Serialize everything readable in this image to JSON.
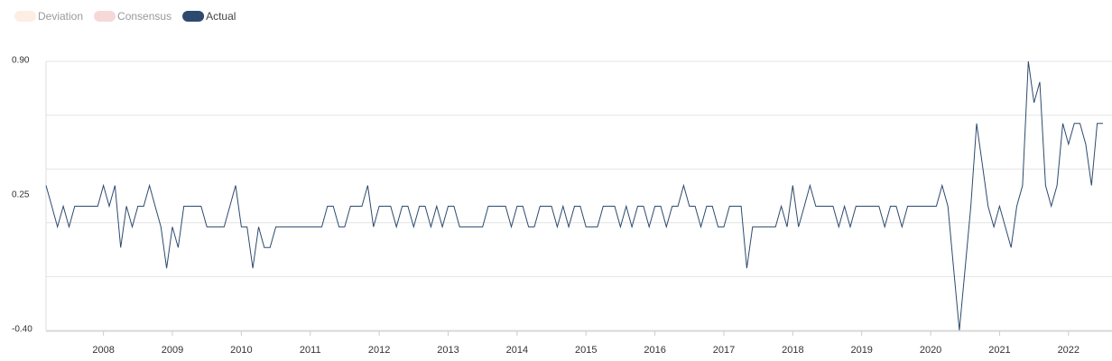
{
  "chart_data": {
    "type": "line",
    "legend": [
      {
        "name": "Deviation",
        "color": "#fdeee3"
      },
      {
        "name": "Consensus",
        "color": "#f6d8d8"
      },
      {
        "name": "Actual",
        "color": "#2d4a6e"
      }
    ],
    "categories": [
      null,
      null,
      null,
      null,
      null,
      null,
      null,
      null,
      null,
      null,
      "2008",
      null,
      null,
      null,
      null,
      null,
      null,
      null,
      null,
      null,
      null,
      null,
      "2009",
      null,
      null,
      null,
      null,
      null,
      null,
      null,
      null,
      null,
      null,
      null,
      "2010",
      null,
      null,
      null,
      null,
      null,
      null,
      null,
      null,
      null,
      null,
      null,
      "2011",
      null,
      null,
      null,
      null,
      null,
      null,
      null,
      null,
      null,
      null,
      null,
      "2012",
      null,
      null,
      null,
      null,
      null,
      null,
      null,
      null,
      null,
      null,
      null,
      "2013",
      null,
      null,
      null,
      null,
      null,
      null,
      null,
      null,
      null,
      null,
      null,
      "2014",
      null,
      null,
      null,
      null,
      null,
      null,
      null,
      null,
      null,
      null,
      null,
      "2015",
      null,
      null,
      null,
      null,
      null,
      null,
      null,
      null,
      null,
      null,
      null,
      "2016",
      null,
      null,
      null,
      null,
      null,
      null,
      null,
      null,
      null,
      null,
      null,
      "2017",
      null,
      null,
      null,
      null,
      null,
      null,
      null,
      null,
      null,
      null,
      null,
      "2018",
      null,
      null,
      null,
      null,
      null,
      null,
      null,
      null,
      null,
      null,
      null,
      "2019",
      null,
      null,
      null,
      null,
      null,
      null,
      null,
      null,
      null,
      null,
      null,
      "2020",
      null,
      null,
      null,
      null,
      null,
      null,
      null,
      null,
      null,
      null,
      null,
      "2021",
      null,
      null,
      null,
      null,
      null,
      null,
      null,
      null,
      null,
      null,
      null,
      "2022",
      null,
      null,
      null,
      null,
      null,
      null
    ],
    "series": [
      {
        "name": "Actual",
        "color": "#2d4a6e",
        "values": [
          0.3,
          0.2,
          0.1,
          0.2,
          0.1,
          0.2,
          0.2,
          0.2,
          0.2,
          0.2,
          0.3,
          0.2,
          0.3,
          0.0,
          0.2,
          0.1,
          0.2,
          0.2,
          0.3,
          0.2,
          0.1,
          -0.1,
          0.1,
          0.0,
          0.2,
          0.2,
          0.2,
          0.2,
          0.1,
          0.1,
          0.1,
          0.1,
          0.2,
          0.3,
          0.1,
          0.1,
          -0.1,
          0.1,
          0.0,
          0.0,
          0.1,
          0.1,
          0.1,
          0.1,
          0.1,
          0.1,
          0.1,
          0.1,
          0.1,
          0.2,
          0.2,
          0.1,
          0.1,
          0.2,
          0.2,
          0.2,
          0.3,
          0.1,
          0.2,
          0.2,
          0.2,
          0.1,
          0.2,
          0.2,
          0.1,
          0.2,
          0.2,
          0.1,
          0.2,
          0.1,
          0.2,
          0.2,
          0.1,
          0.1,
          0.1,
          0.1,
          0.1,
          0.2,
          0.2,
          0.2,
          0.2,
          0.1,
          0.2,
          0.2,
          0.1,
          0.1,
          0.2,
          0.2,
          0.2,
          0.1,
          0.2,
          0.1,
          0.2,
          0.2,
          0.1,
          0.1,
          0.1,
          0.2,
          0.2,
          0.2,
          0.1,
          0.2,
          0.1,
          0.2,
          0.2,
          0.1,
          0.2,
          0.2,
          0.1,
          0.2,
          0.2,
          0.3,
          0.2,
          0.2,
          0.1,
          0.2,
          0.2,
          0.1,
          0.1,
          0.2,
          0.2,
          0.2,
          -0.1,
          0.1,
          0.1,
          0.1,
          0.1,
          0.1,
          0.2,
          0.1,
          0.3,
          0.1,
          0.2,
          0.3,
          0.2,
          0.2,
          0.2,
          0.2,
          0.1,
          0.2,
          0.1,
          0.2,
          0.2,
          0.2,
          0.2,
          0.2,
          0.1,
          0.2,
          0.2,
          0.1,
          0.2,
          0.2,
          0.2,
          0.2,
          0.2,
          0.2,
          0.3,
          0.2,
          -0.1,
          -0.4,
          -0.1,
          0.2,
          0.6,
          0.4,
          0.2,
          0.1,
          0.2,
          0.1,
          0.0,
          0.2,
          0.3,
          0.9,
          0.7,
          0.8,
          0.3,
          0.2,
          0.3,
          0.6,
          0.5,
          0.6,
          0.6,
          0.5,
          0.3,
          0.6,
          0.6
        ]
      }
    ],
    "ylim": [
      -0.4,
      0.9
    ],
    "yticks": [
      {
        "value": 0.9,
        "label": "0.90"
      },
      {
        "value": 0.25,
        "label": "0.25"
      },
      {
        "value": -0.4,
        "label": "-0.40"
      }
    ],
    "ygrid": [
      0.9,
      0.64,
      0.38,
      0.12,
      -0.14,
      -0.4
    ],
    "grid": true
  }
}
